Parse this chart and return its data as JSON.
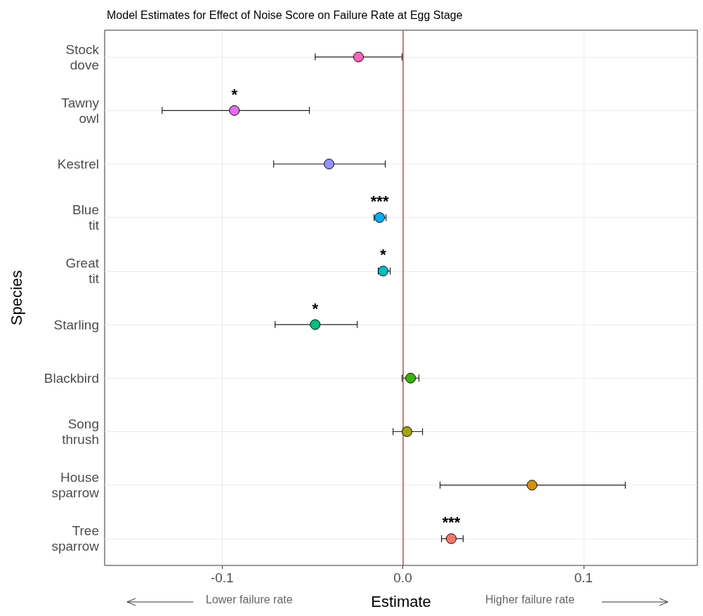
{
  "chart_data": {
    "type": "scatter",
    "title": "Model Estimates for Effect of Noise Score on Failure Rate at Egg Stage",
    "xlabel": "Estimate",
    "ylabel": "Species",
    "orientation": "horizontal",
    "categories": [
      "Stock\ndove",
      "Tawny\nowl",
      "Kestrel",
      "Blue\ntit",
      "Great\ntit",
      "Starling",
      "Blackbird",
      "Song\nthrush",
      "House\nsparrow",
      "Tree\nsparrow"
    ],
    "values": [
      -0.0245,
      -0.0932,
      -0.0408,
      -0.0128,
      -0.0109,
      -0.0485,
      0.0043,
      0.0023,
      0.0715,
      0.0268
    ],
    "errors": [
      [
        -0.0485,
        -0.0004
      ],
      [
        -0.1332,
        -0.0517
      ],
      [
        -0.0715,
        -0.0097
      ],
      [
        -0.0159,
        -0.0093
      ],
      [
        -0.0136,
        -0.007
      ],
      [
        -0.0707,
        -0.0252
      ],
      [
        -0.0004,
        0.0089
      ],
      [
        -0.0054,
        0.0109
      ],
      [
        0.0206,
        0.1231
      ],
      [
        0.0214,
        0.0334
      ]
    ],
    "colors": [
      "#ff62bc",
      "#e76bf3",
      "#9590ff",
      "#00b0f6",
      "#00bfc4",
      "#00bf7d",
      "#39b600",
      "#a3a500",
      "#d89000",
      "#f8766d"
    ],
    "xlim": [
      -0.165,
      0.163
    ],
    "xticks": [
      {
        "value": -0.1,
        "label": "-0.1"
      },
      {
        "value": 0,
        "label": "0.0"
      },
      {
        "value": 0.1,
        "label": "0.1"
      }
    ],
    "ref_lines": [
      {
        "axis": "x",
        "value": 0,
        "color": "#cd4f4f"
      }
    ],
    "annotations": [
      {
        "text": "*",
        "x": -0.0932,
        "y": "Tawny\nowl"
      },
      {
        "text": "***",
        "x": -0.0128,
        "y": "Blue\ntit"
      },
      {
        "text": "*",
        "x": -0.0109,
        "y": "Great\ntit"
      },
      {
        "text": "*",
        "x": -0.0485,
        "y": "Starling"
      },
      {
        "text": "***",
        "x": 0.0268,
        "y": "Tree\nsparrow"
      },
      "Lower failure rate",
      "Higher failure rate"
    ],
    "grid": true,
    "marker": "circle"
  }
}
